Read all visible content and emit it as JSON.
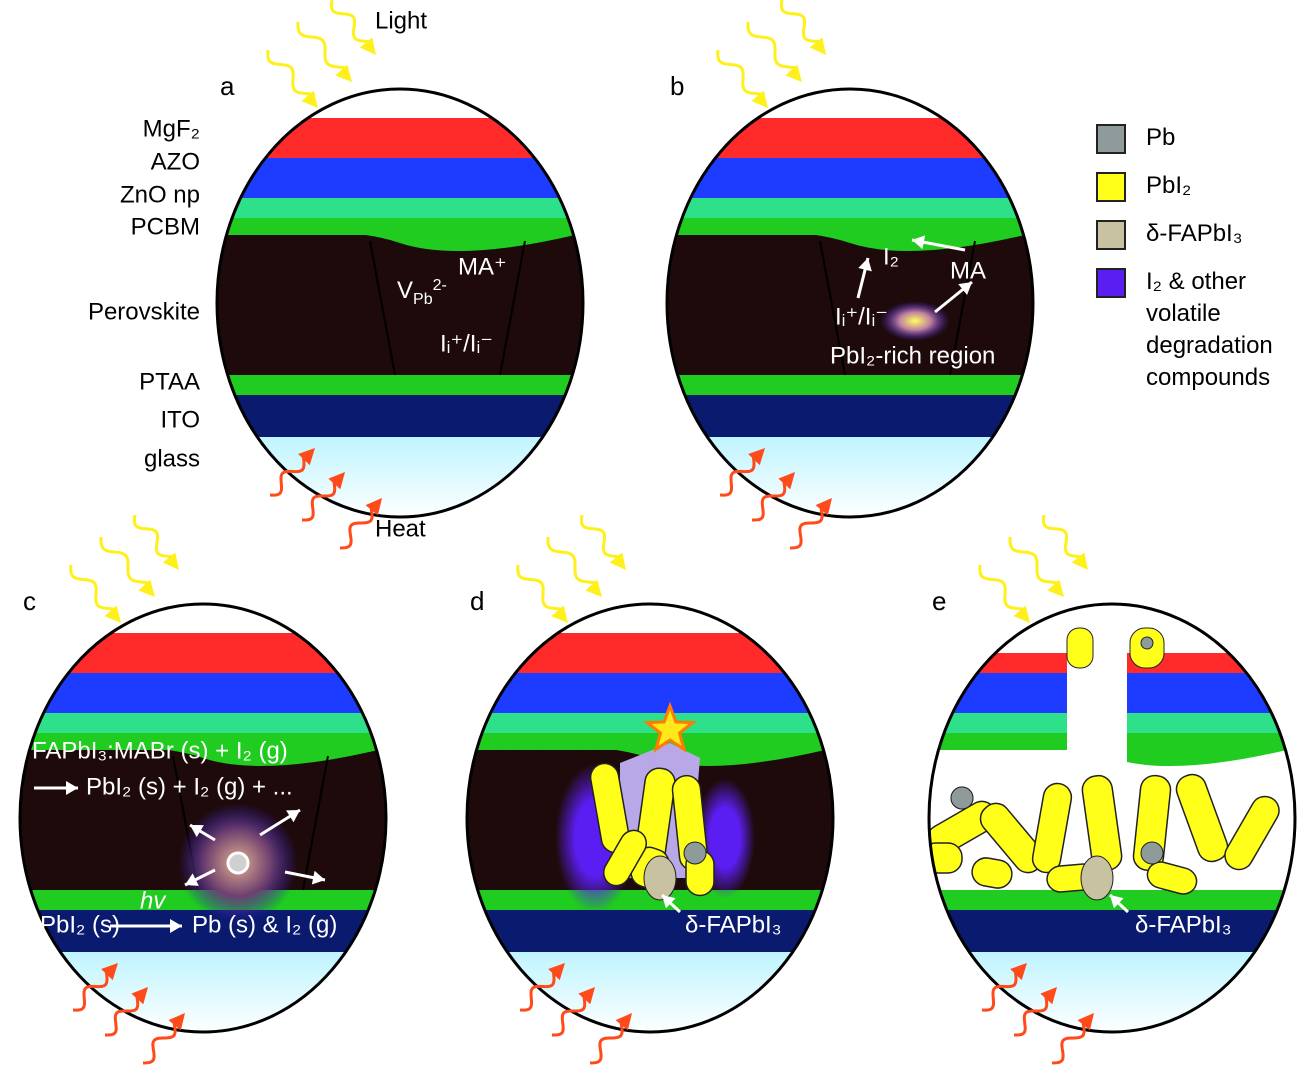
{
  "light_label": "Light",
  "heat_label": "Heat",
  "layer_labels": [
    "MgF₂",
    "AZO",
    "ZnO np",
    "PCBM",
    "Perovskite",
    "PTAA",
    "ITO",
    "glass"
  ],
  "panels": [
    {
      "label": "a"
    },
    {
      "label": "b"
    },
    {
      "label": "c"
    },
    {
      "label": "d"
    },
    {
      "label": "e"
    }
  ],
  "panel_a": {
    "vacancy": {
      "base": "V",
      "sub": "Pb",
      "sup": "2-"
    },
    "cation": "MA⁺",
    "interstitial": "Iᵢ⁺/Iᵢ⁻"
  },
  "panel_b": {
    "iodine": "I₂",
    "methylammonium": "MA",
    "interstitial": "Iᵢ⁺/Iᵢ⁻",
    "region": "PbI₂-rich region"
  },
  "panel_c": {
    "reaction1_reactants": "FAPbI₃:MABr (s) + I₂ (g)",
    "reaction1_products": "PbI₂ (s) + I₂ (g) + ...",
    "photon": "hv",
    "reaction2_reactant": "PbI₂ (s)",
    "reaction2_products": "Pb (s) & I₂ (g)"
  },
  "panel_d": {
    "phase": "δ-FAPbI₃"
  },
  "panel_e": {
    "phase": "δ-FAPbI₃"
  },
  "legend": [
    {
      "label": "Pb",
      "color": "#8f9b9b"
    },
    {
      "label": "PbI₂",
      "color": "#ffff1a"
    },
    {
      "label": "δ-FAPbI₃",
      "color": "#c9c2a0"
    },
    {
      "label": "I₂ & other volatile degradation compounds",
      "color": "#5b1ef2"
    }
  ]
}
